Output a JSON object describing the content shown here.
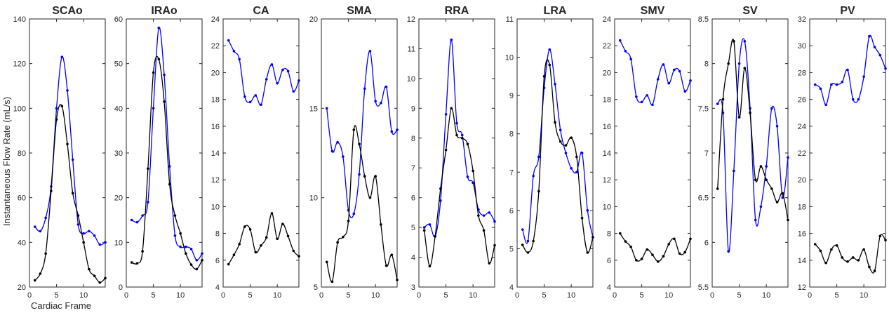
{
  "figure": {
    "ylabel": "Instantaneous Flow Rate (mL/s)",
    "xlabel": "Cardiac Frame"
  },
  "colors": {
    "blue": "#0000ff",
    "black": "#000000",
    "axis": "#262626"
  },
  "chart_data": [
    {
      "type": "line",
      "title": "SCAo",
      "xlim": [
        0,
        14
      ],
      "ylim": [
        20,
        140
      ],
      "xticks": [
        0,
        5,
        10
      ],
      "yticks": [
        20,
        40,
        60,
        80,
        100,
        120,
        140
      ],
      "x": [
        1,
        2,
        3,
        4,
        5,
        6,
        7,
        8,
        9,
        10,
        11,
        12,
        13,
        14
      ],
      "series": [
        {
          "color": "blue",
          "values": [
            47,
            45,
            51,
            65,
            100,
            123,
            108,
            77,
            48,
            44,
            45,
            43,
            39,
            40
          ]
        },
        {
          "color": "black",
          "values": [
            23,
            26,
            35,
            63,
            95,
            101,
            84,
            62,
            52,
            40,
            28,
            25,
            22,
            24
          ]
        }
      ]
    },
    {
      "type": "line",
      "title": "IRAo",
      "xlim": [
        0,
        14
      ],
      "ylim": [
        0,
        60
      ],
      "xticks": [
        0,
        5,
        10
      ],
      "yticks": [
        0,
        10,
        20,
        30,
        40,
        50,
        60
      ],
      "x": [
        1,
        2,
        3,
        4,
        5,
        6,
        7,
        8,
        9,
        10,
        11,
        12,
        13,
        14
      ],
      "series": [
        {
          "color": "blue",
          "values": [
            15,
            14.5,
            16,
            19,
            40,
            58,
            47.5,
            27,
            11.5,
            9,
            9,
            8.5,
            6,
            7.5
          ]
        },
        {
          "color": "black",
          "values": [
            5.5,
            5.3,
            8,
            26.5,
            48,
            51,
            41.5,
            23,
            16,
            12,
            7.5,
            5,
            4,
            6
          ]
        }
      ]
    },
    {
      "type": "line",
      "title": "CA",
      "xlim": [
        0,
        14
      ],
      "ylim": [
        4,
        24
      ],
      "xticks": [
        0,
        5,
        10
      ],
      "yticks": [
        4,
        6,
        8,
        10,
        12,
        14,
        16,
        18,
        20,
        22,
        24
      ],
      "x": [
        1,
        2,
        3,
        4,
        5,
        6,
        7,
        8,
        9,
        10,
        11,
        12,
        13,
        14
      ],
      "series": [
        {
          "color": "blue",
          "values": [
            22.4,
            21.6,
            21,
            18.2,
            17.8,
            18.3,
            17.6,
            19.5,
            20.6,
            19.2,
            20.2,
            20.1,
            18.6,
            19.4
          ]
        },
        {
          "color": "black",
          "values": [
            5.7,
            6.4,
            7.2,
            8.5,
            8.3,
            6.6,
            7.1,
            7.7,
            9.5,
            7.6,
            8.7,
            7.8,
            6.7,
            6.3
          ]
        }
      ]
    },
    {
      "type": "line",
      "title": "SMA",
      "xlim": [
        0,
        14
      ],
      "ylim": [
        5,
        20
      ],
      "xticks": [
        0,
        5,
        10
      ],
      "yticks": [
        5,
        10,
        15,
        20
      ],
      "x": [
        1,
        2,
        3,
        4,
        5,
        6,
        7,
        8,
        9,
        10,
        11,
        12,
        13,
        14
      ],
      "series": [
        {
          "color": "blue",
          "values": [
            15,
            12.6,
            13.1,
            12.3,
            9.3,
            9.1,
            11.3,
            16.1,
            18.2,
            15.4,
            15.3,
            16.2,
            13.7,
            13.8
          ]
        },
        {
          "color": "black",
          "values": [
            6.4,
            5.3,
            7.5,
            7.8,
            8.7,
            13.8,
            13,
            11.2,
            10,
            11.2,
            8.5,
            6.2,
            6.8,
            5.4
          ]
        }
      ]
    },
    {
      "type": "line",
      "title": "RRA",
      "xlim": [
        0,
        14
      ],
      "ylim": [
        3,
        12
      ],
      "xticks": [
        0,
        5,
        10
      ],
      "yticks": [
        3,
        4,
        5,
        6,
        7,
        8,
        9,
        10,
        11,
        12
      ],
      "x": [
        1,
        2,
        3,
        4,
        5,
        6,
        7,
        8,
        9,
        10,
        11,
        12,
        13,
        14
      ],
      "series": [
        {
          "color": "blue",
          "values": [
            5,
            5.1,
            4.7,
            5.9,
            8.8,
            11.3,
            8.5,
            8.1,
            6.7,
            6.5,
            5.6,
            5.4,
            5.5,
            5.2
          ]
        },
        {
          "color": "black",
          "values": [
            4.9,
            3.7,
            4.7,
            6.3,
            7.6,
            9,
            8.1,
            8,
            7.8,
            6.9,
            5.4,
            4.9,
            3.8,
            4.4
          ]
        }
      ]
    },
    {
      "type": "line",
      "title": "LRA",
      "xlim": [
        0,
        14
      ],
      "ylim": [
        4,
        11
      ],
      "xticks": [
        0,
        5,
        10
      ],
      "yticks": [
        4,
        5,
        6,
        7,
        8,
        9,
        10,
        11
      ],
      "x": [
        1,
        2,
        3,
        4,
        5,
        6,
        7,
        8,
        9,
        10,
        11,
        12,
        13,
        14
      ],
      "series": [
        {
          "color": "blue",
          "values": [
            5.5,
            5.2,
            6.9,
            7.4,
            9.2,
            10.2,
            9.3,
            8.1,
            7.5,
            7.1,
            7,
            7.5,
            6,
            5.3
          ]
        },
        {
          "color": "black",
          "values": [
            5.1,
            4.9,
            5.2,
            6.5,
            9.5,
            9.8,
            8.3,
            7.8,
            7.7,
            7.9,
            7.4,
            5.8,
            4.9,
            5.3
          ]
        }
      ]
    },
    {
      "type": "line",
      "title": "SMV",
      "xlim": [
        0,
        14
      ],
      "ylim": [
        4,
        24
      ],
      "xticks": [
        0,
        5,
        10
      ],
      "yticks": [
        4,
        6,
        8,
        10,
        12,
        14,
        16,
        18,
        20,
        22,
        24
      ],
      "x": [
        1,
        2,
        3,
        4,
        5,
        6,
        7,
        8,
        9,
        10,
        11,
        12,
        13,
        14
      ],
      "series": [
        {
          "color": "blue",
          "values": [
            22.4,
            21.6,
            21,
            18.2,
            17.8,
            18.3,
            17.6,
            19.5,
            20.6,
            19.2,
            20.2,
            20.1,
            18.6,
            19.4
          ]
        },
        {
          "color": "black",
          "values": [
            8,
            7.4,
            7,
            6,
            6.1,
            6.8,
            6.4,
            5.9,
            6.3,
            7.2,
            7.6,
            6.5,
            6.6,
            7.6
          ]
        }
      ]
    },
    {
      "type": "line",
      "title": "SV",
      "xlim": [
        0,
        14
      ],
      "ylim": [
        5.5,
        8.5
      ],
      "xticks": [
        0,
        5,
        10
      ],
      "yticks": [
        5.5,
        6,
        6.5,
        7,
        7.5,
        8,
        8.5
      ],
      "x": [
        1,
        2,
        3,
        4,
        5,
        6,
        7,
        8,
        9,
        10,
        11,
        12,
        13,
        14
      ],
      "series": [
        {
          "color": "blue",
          "values": [
            7.55,
            7.45,
            5.9,
            6.8,
            8,
            8.25,
            7.5,
            6.25,
            6.4,
            6.85,
            7.5,
            7.3,
            6.5,
            6.95
          ]
        },
        {
          "color": "black",
          "values": [
            6.6,
            7.6,
            8,
            8.25,
            7.4,
            7.95,
            7.45,
            6.7,
            6.85,
            6.7,
            6.6,
            6.45,
            6.55,
            6.25
          ]
        }
      ]
    },
    {
      "type": "line",
      "title": "PV",
      "xlim": [
        0,
        14
      ],
      "ylim": [
        12,
        32
      ],
      "xticks": [
        0,
        5,
        10
      ],
      "yticks": [
        12,
        14,
        16,
        18,
        20,
        22,
        24,
        26,
        28,
        30,
        32
      ],
      "x": [
        1,
        2,
        3,
        4,
        5,
        6,
        7,
        8,
        9,
        10,
        11,
        12,
        13,
        14
      ],
      "series": [
        {
          "color": "blue",
          "values": [
            27.1,
            26.8,
            25.6,
            27.1,
            27.1,
            27.3,
            28.2,
            26,
            26,
            27.7,
            30.7,
            29.9,
            29.3,
            28.3
          ]
        },
        {
          "color": "black",
          "values": [
            15.2,
            14.7,
            13.8,
            14.8,
            15.1,
            14.2,
            13.9,
            14.2,
            14,
            14.8,
            13.5,
            13.2,
            15.8,
            15.5
          ]
        }
      ]
    }
  ]
}
